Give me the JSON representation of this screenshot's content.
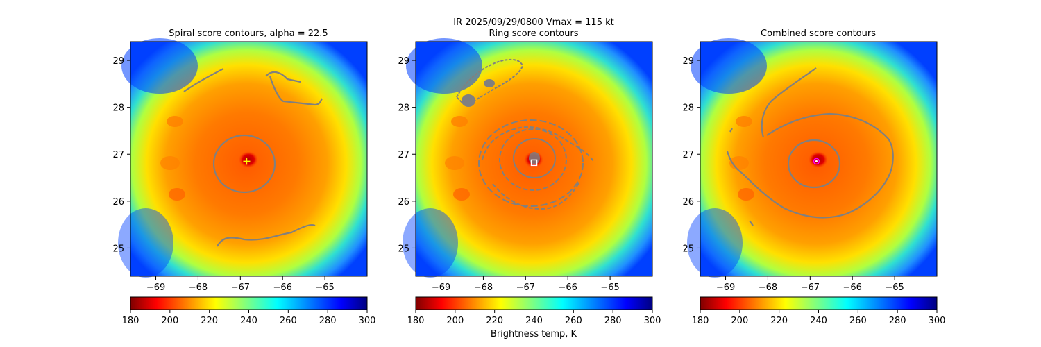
{
  "suptitle": {
    "line1": "IR  2025/09/29/0800    Vmax = 115 kt"
  },
  "colorbar": {
    "ticks": [
      "180",
      "200",
      "220",
      "240",
      "260",
      "280",
      "300"
    ],
    "label": "Brightness temp, K",
    "vmin": 180,
    "vmax": 300,
    "colormap": "jet_r"
  },
  "chart_data": [
    {
      "type": "heatmap",
      "title": "Spiral score contours, alpha = 22.5",
      "xlim": [
        -69.6,
        -64.0
      ],
      "ylim": [
        24.4,
        29.4
      ],
      "x_ticks": [
        "−69",
        "−68",
        "−67",
        "−66",
        "−65"
      ],
      "y_ticks": [
        "29",
        "28",
        "27",
        "26",
        "25"
      ],
      "center_estimate": {
        "lon": -66.85,
        "lat": 26.85,
        "marker": "plus",
        "color": "#ffff00"
      },
      "contour_color": "#808080"
    },
    {
      "type": "heatmap",
      "title": "Ring score contours",
      "xlim": [
        -69.6,
        -64.0
      ],
      "ylim": [
        24.4,
        29.4
      ],
      "x_ticks": [
        "−69",
        "−68",
        "−67",
        "−66",
        "−65"
      ],
      "y_ticks": [
        "29",
        "28",
        "27",
        "26",
        "25"
      ],
      "center_estimate": {
        "lon": -66.8,
        "lat": 26.82,
        "marker": "square",
        "color": "#ffffff"
      },
      "contour_color": "#808080"
    },
    {
      "type": "heatmap",
      "title": "Combined score contours",
      "xlim": [
        -69.6,
        -64.0
      ],
      "ylim": [
        24.4,
        29.4
      ],
      "x_ticks": [
        "−69",
        "−68",
        "−67",
        "−66",
        "−65"
      ],
      "y_ticks": [
        "29",
        "28",
        "27",
        "26",
        "25"
      ],
      "center_estimate": {
        "lon": -66.85,
        "lat": 26.85,
        "marker": "circle",
        "color": "#ff00ff"
      },
      "contour_color": "#808080"
    }
  ]
}
